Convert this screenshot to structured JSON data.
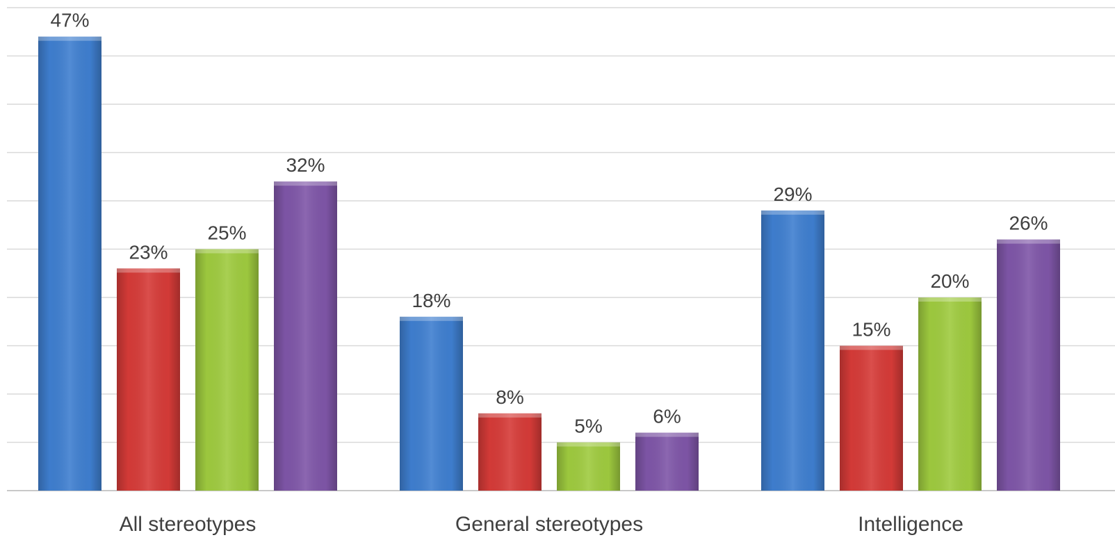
{
  "chart_data": {
    "type": "bar",
    "title": "",
    "xlabel": "",
    "ylabel": "",
    "ylim": [
      0,
      50
    ],
    "grid": true,
    "legend": "none",
    "categories": [
      "All stereotypes",
      "General stereotypes",
      "Intelligence"
    ],
    "series": [
      {
        "values": [
          47,
          18,
          29
        ],
        "labels": [
          "47%",
          "18%",
          "29%"
        ],
        "color": "#3f7fd0"
      },
      {
        "values": [
          23,
          8,
          15
        ],
        "labels": [
          "23%",
          "8%",
          "15%"
        ],
        "color": "#d63b38"
      },
      {
        "values": [
          25,
          5,
          20
        ],
        "labels": [
          "25%",
          "5%",
          "20%"
        ],
        "color": "#9fcb3f"
      },
      {
        "values": [
          32,
          6,
          26
        ],
        "labels": [
          "32%",
          "6%",
          "26%"
        ],
        "color": "#7f56a8"
      }
    ]
  }
}
